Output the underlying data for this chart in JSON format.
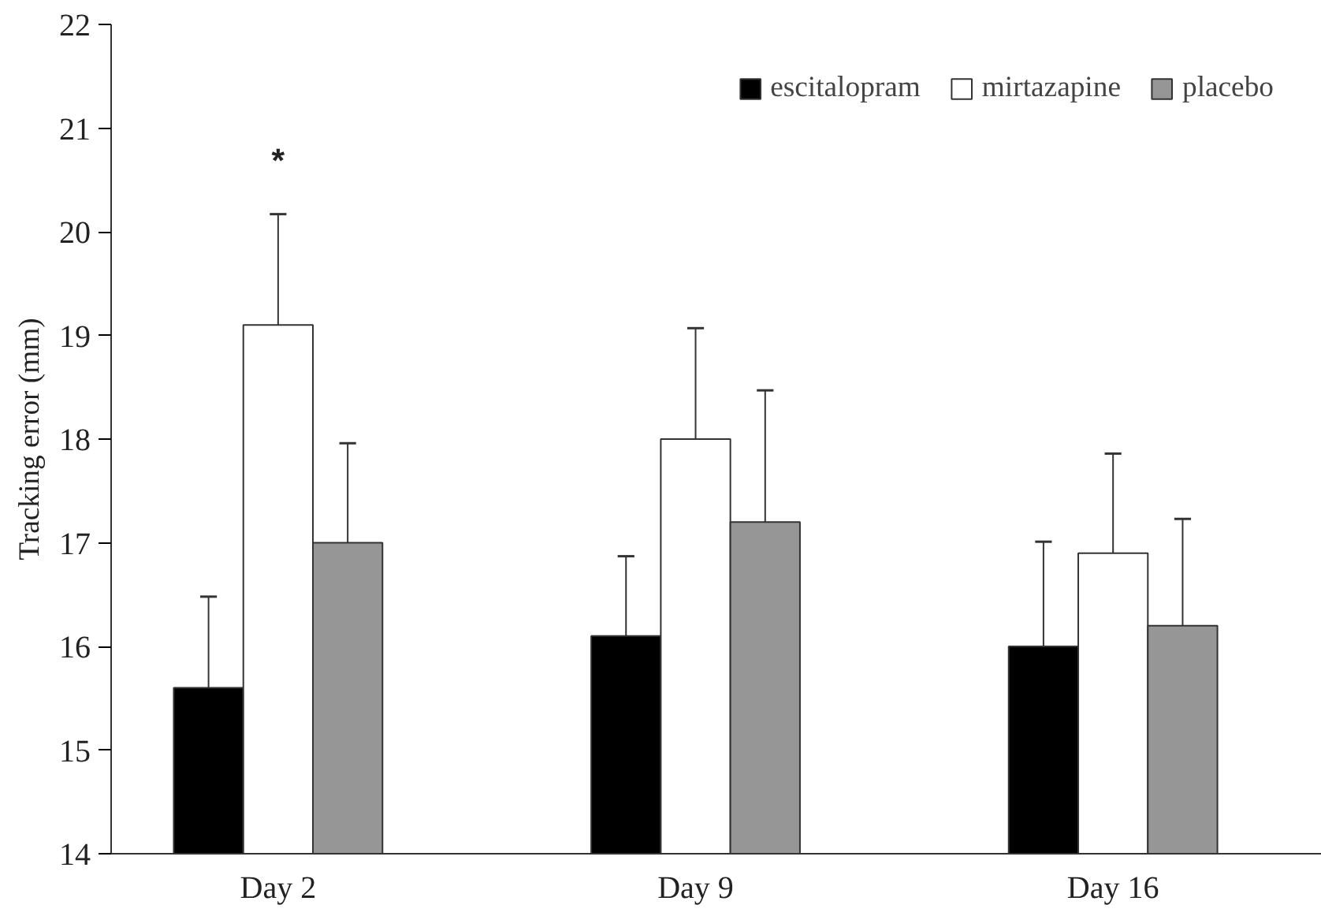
{
  "chart_data": {
    "type": "bar",
    "ylabel": "Tracking error (mm)",
    "categories": [
      "Day 2",
      "Day 9",
      "Day 16"
    ],
    "series": [
      {
        "name": "escitalopram",
        "color": "#000000",
        "values": [
          15.6,
          16.1,
          16.0
        ],
        "errors": [
          [
            15.6,
            16.48
          ],
          [
            16.1,
            16.87
          ],
          [
            16.0,
            17.01
          ]
        ]
      },
      {
        "name": "mirtazapine",
        "color": "#ffffff",
        "values": [
          19.1,
          18.0,
          16.9
        ],
        "errors": [
          [
            19.1,
            20.17
          ],
          [
            18.0,
            19.07
          ],
          [
            16.9,
            17.86
          ]
        ]
      },
      {
        "name": "placebo",
        "color": "#969696",
        "values": [
          17.0,
          17.2,
          16.2
        ],
        "errors": [
          [
            17.0,
            17.96
          ],
          [
            17.2,
            18.47
          ],
          [
            16.2,
            17.23
          ]
        ]
      }
    ],
    "ylim": [
      14,
      22
    ],
    "yticks": [
      14,
      15,
      16,
      17,
      18,
      19,
      20,
      21,
      22
    ],
    "annotations": [
      "*"
    ],
    "legend": "top right",
    "grid": false
  }
}
